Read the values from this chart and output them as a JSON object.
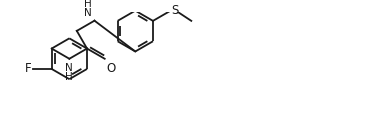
{
  "bg_color": "#ffffff",
  "line_color": "#1a1a1a",
  "text_color": "#1a1a1a",
  "fig_width": 3.91,
  "fig_height": 1.19,
  "dpi": 100,
  "lw": 1.3,
  "r": 0.55,
  "xlim": [
    0,
    10.5
  ],
  "ylim": [
    0,
    2.8
  ]
}
